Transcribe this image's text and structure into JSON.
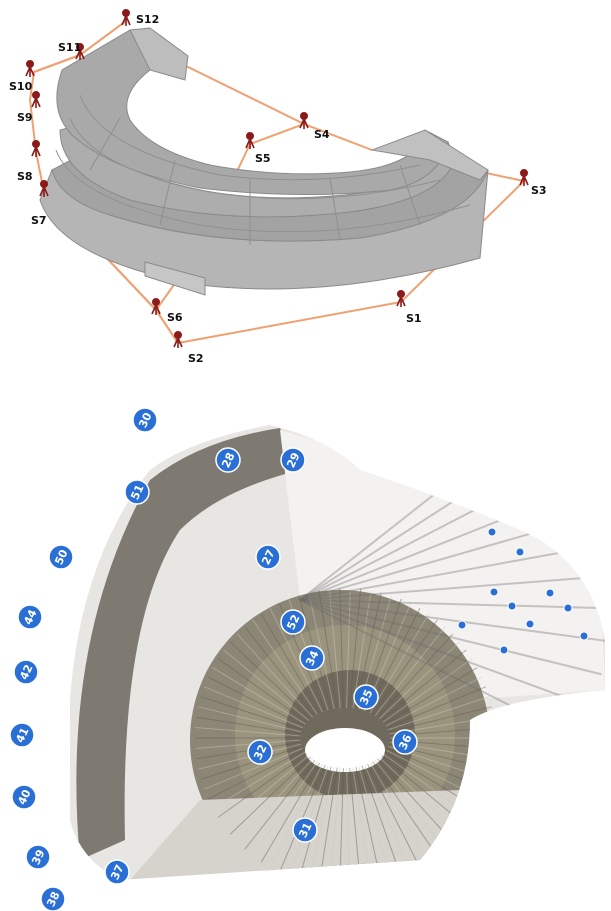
{
  "stations": [
    {
      "id": "S1",
      "label": "S1"
    },
    {
      "id": "S2",
      "label": "S2"
    },
    {
      "id": "S3",
      "label": "S3"
    },
    {
      "id": "S4",
      "label": "S4"
    },
    {
      "id": "S5",
      "label": "S5"
    },
    {
      "id": "S6",
      "label": "S6"
    },
    {
      "id": "S7",
      "label": "S7"
    },
    {
      "id": "S8",
      "label": "S8"
    },
    {
      "id": "S9",
      "label": "S9"
    },
    {
      "id": "S10",
      "label": "S10"
    },
    {
      "id": "S11",
      "label": "S11"
    },
    {
      "id": "S12",
      "label": "S12"
    }
  ],
  "markers": [
    {
      "label": "30"
    },
    {
      "label": "28"
    },
    {
      "label": "29"
    },
    {
      "label": "51"
    },
    {
      "label": "50"
    },
    {
      "label": "27"
    },
    {
      "label": "44"
    },
    {
      "label": "52"
    },
    {
      "label": "42"
    },
    {
      "label": "34"
    },
    {
      "label": "35"
    },
    {
      "label": "41"
    },
    {
      "label": "32"
    },
    {
      "label": "36"
    },
    {
      "label": "40"
    },
    {
      "label": "31"
    },
    {
      "label": "39"
    },
    {
      "label": "37"
    },
    {
      "label": "38"
    }
  ],
  "colors": {
    "traverse": "#f0a070",
    "tripod": "#8b1a1a",
    "structure_top": "#a8a8a8",
    "structure_side": "#b8b8b8",
    "marker": "#2a6fd6"
  }
}
